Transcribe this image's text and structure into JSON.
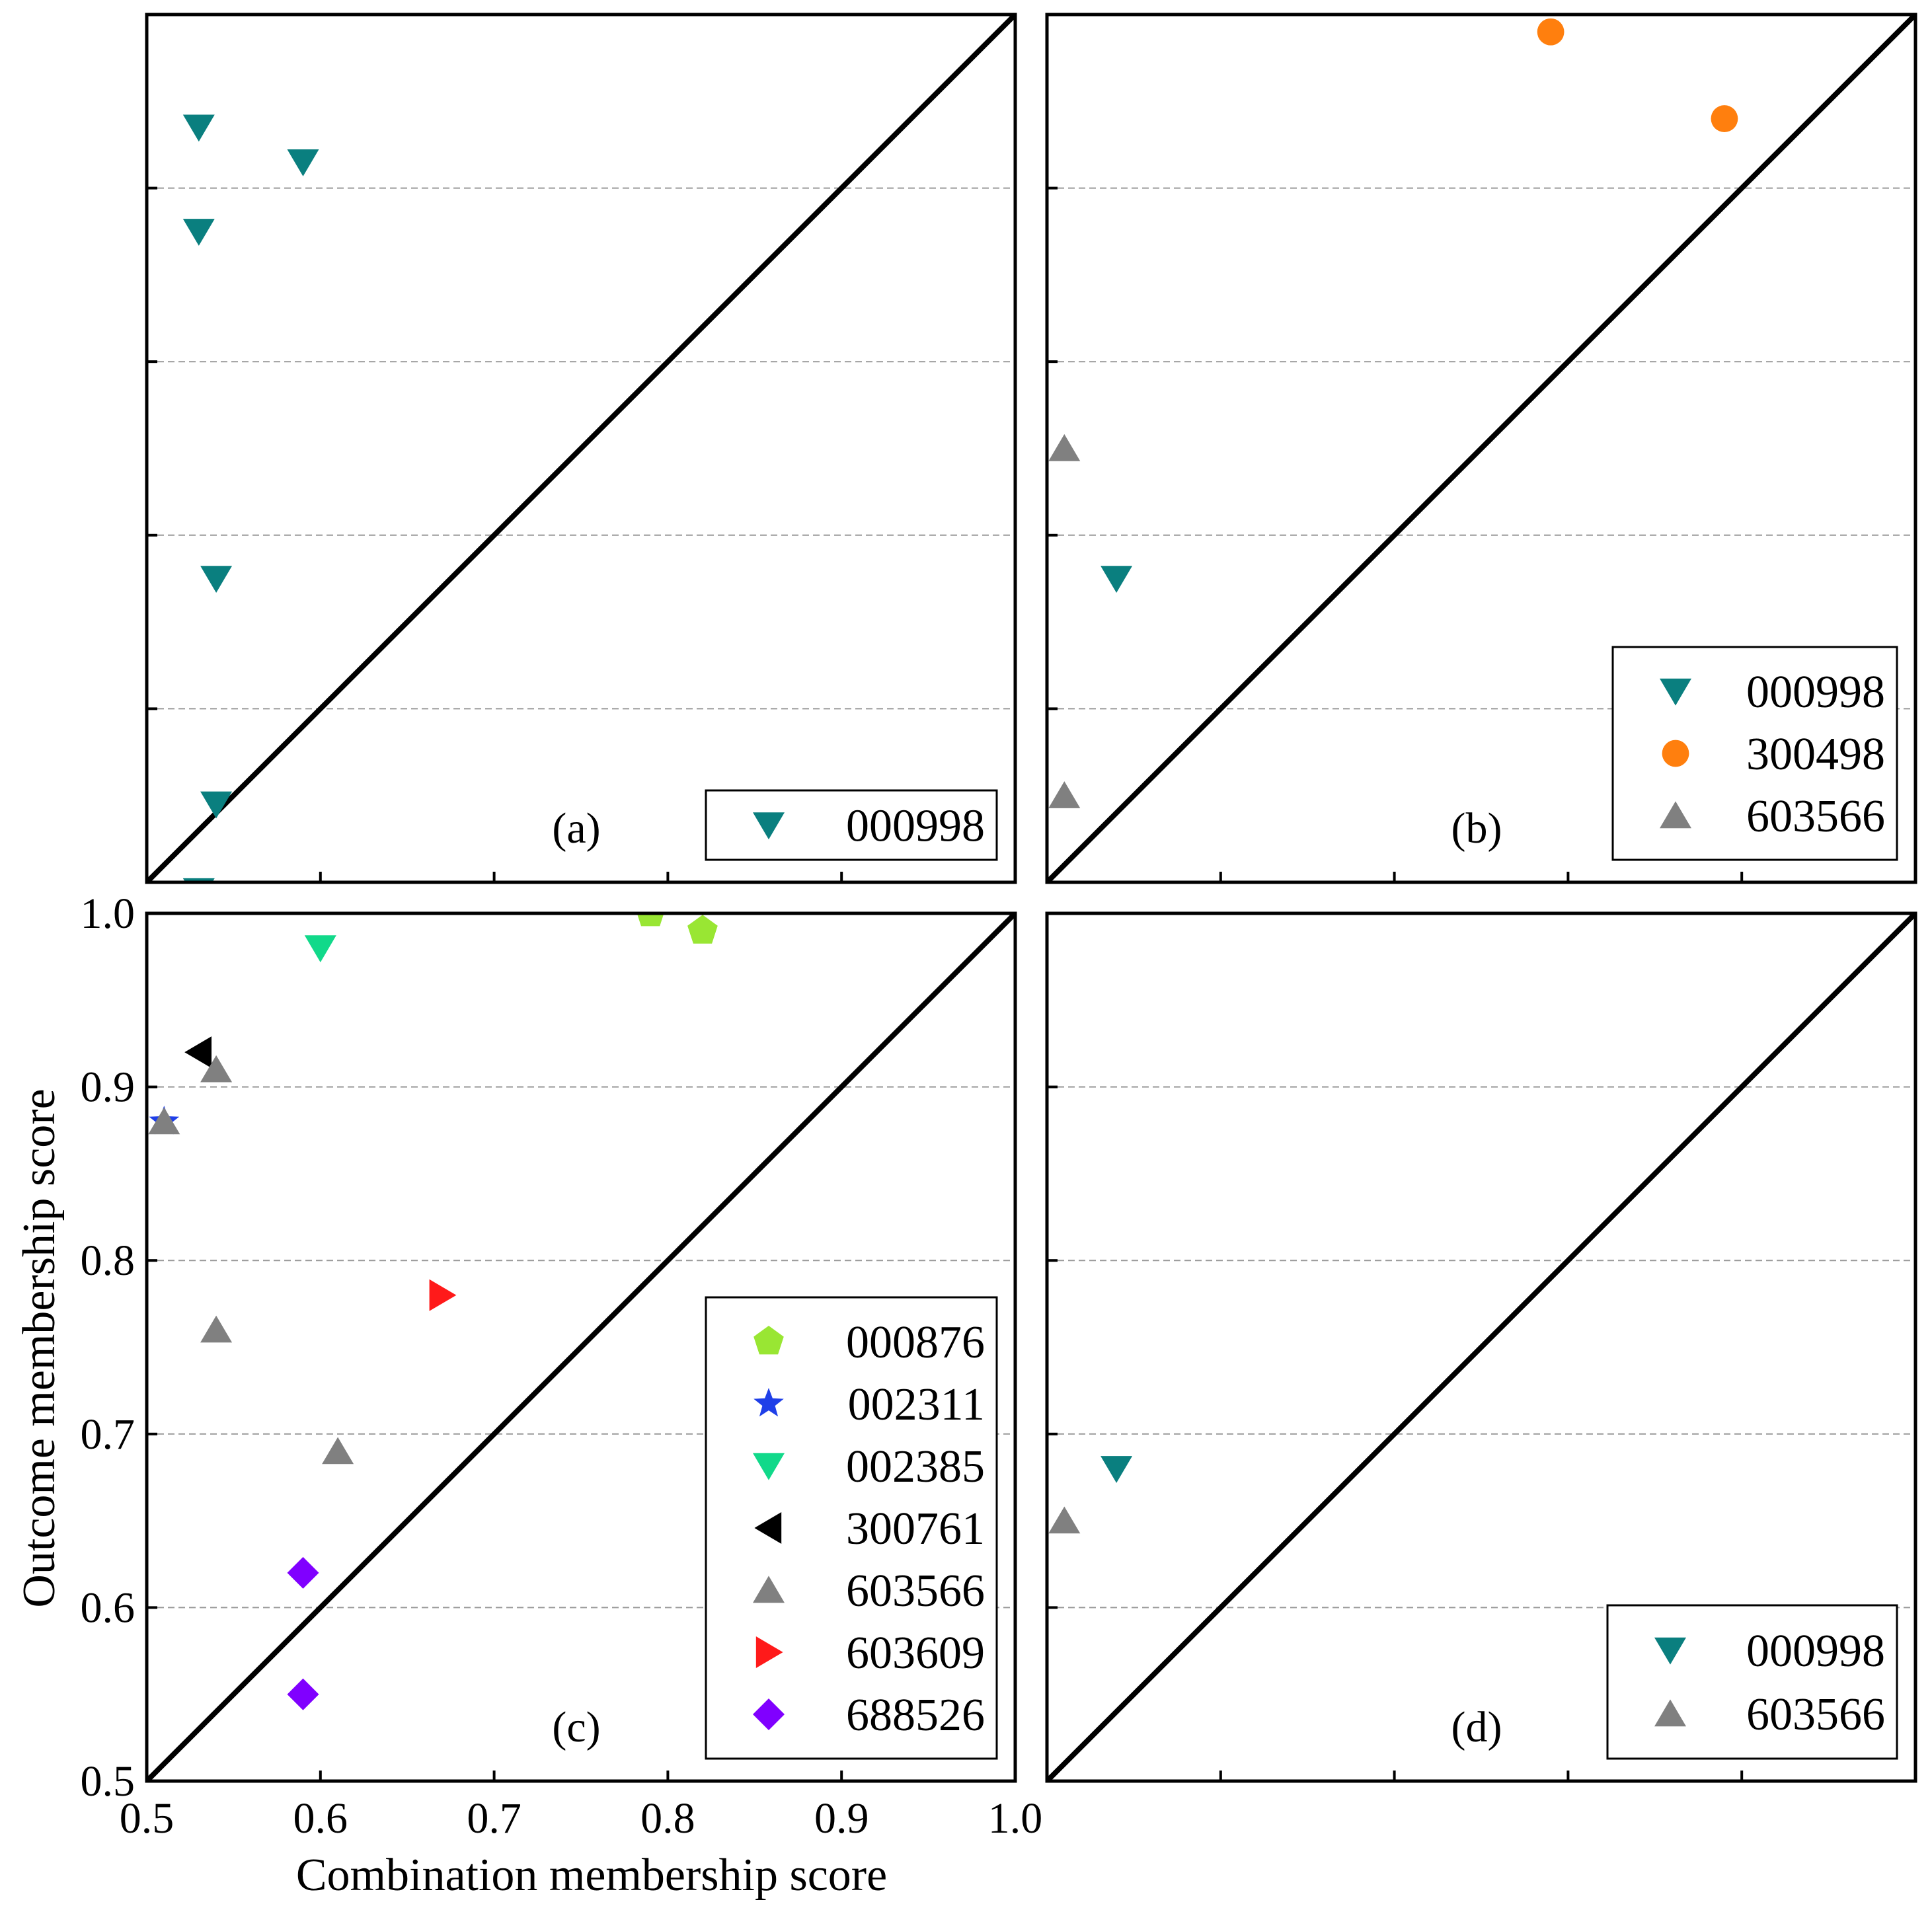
{
  "chart_data": [
    {
      "type": "scatter",
      "panel_label": "(a)",
      "xlim": [
        0.5,
        1.0
      ],
      "ylim": [
        0.5,
        1.0
      ],
      "grid": true,
      "diagonal": true,
      "legend_position": "bottom-right",
      "series": [
        {
          "name": "000998",
          "marker": "triangle-down",
          "color": "#0a7f7f",
          "points": [
            [
              0.53,
              0.935
            ],
            [
              0.59,
              0.915
            ],
            [
              0.53,
              0.875
            ],
            [
              0.54,
              0.675
            ],
            [
              0.54,
              0.545
            ],
            [
              0.53,
              0.495
            ]
          ]
        }
      ]
    },
    {
      "type": "scatter",
      "panel_label": "(b)",
      "xlim": [
        0.5,
        1.0
      ],
      "ylim": [
        0.5,
        1.0
      ],
      "grid": true,
      "diagonal": true,
      "legend_position": "bottom-right",
      "series": [
        {
          "name": "000998",
          "marker": "triangle-down",
          "color": "#0a7f7f",
          "points": [
            [
              0.54,
              0.675
            ]
          ]
        },
        {
          "name": "300498",
          "marker": "circle",
          "color": "#ff7f0e",
          "points": [
            [
              0.79,
              0.99
            ],
            [
              0.89,
              0.94
            ]
          ]
        },
        {
          "name": "603566",
          "marker": "triangle-up",
          "color": "#808080",
          "points": [
            [
              0.51,
              0.75
            ],
            [
              0.51,
              0.55
            ]
          ]
        }
      ]
    },
    {
      "type": "scatter",
      "panel_label": "(c)",
      "xlabel": "Combination membership score",
      "ylabel": "Outcome membership score",
      "xlim": [
        0.5,
        1.0
      ],
      "ylim": [
        0.5,
        1.0
      ],
      "xticks": [
        "0.5",
        "0.6",
        "0.7",
        "0.8",
        "0.9",
        "1.0"
      ],
      "yticks": [
        "0.5",
        "0.6",
        "0.7",
        "0.8",
        "0.9",
        "1.0"
      ],
      "grid": true,
      "diagonal": true,
      "legend_position": "bottom-right",
      "series": [
        {
          "name": "000876",
          "marker": "pentagon",
          "color": "#99e633",
          "points": [
            [
              0.79,
              1.0
            ],
            [
              0.82,
              0.99
            ]
          ]
        },
        {
          "name": "002311",
          "marker": "star",
          "color": "#1f3fe8",
          "points": [
            [
              0.51,
              0.88
            ]
          ]
        },
        {
          "name": "002385",
          "marker": "triangle-down",
          "color": "#11d98a",
          "points": [
            [
              0.6,
              0.98
            ]
          ]
        },
        {
          "name": "300761",
          "marker": "triangle-left",
          "color": "#000000",
          "points": [
            [
              0.53,
              0.92
            ]
          ]
        },
        {
          "name": "603566",
          "marker": "triangle-up",
          "color": "#808080",
          "points": [
            [
              0.54,
              0.91
            ],
            [
              0.51,
              0.88
            ],
            [
              0.54,
              0.76
            ],
            [
              0.61,
              0.69
            ]
          ]
        },
        {
          "name": "603609",
          "marker": "triangle-right",
          "color": "#ff1a1a",
          "points": [
            [
              0.67,
              0.78
            ]
          ]
        },
        {
          "name": "688526",
          "marker": "diamond",
          "color": "#8000ff",
          "points": [
            [
              0.59,
              0.62
            ],
            [
              0.59,
              0.55
            ]
          ]
        }
      ]
    },
    {
      "type": "scatter",
      "panel_label": "(d)",
      "xlim": [
        0.5,
        1.0
      ],
      "ylim": [
        0.5,
        1.0
      ],
      "grid": true,
      "diagonal": true,
      "legend_position": "bottom-right",
      "series": [
        {
          "name": "000998",
          "marker": "triangle-down",
          "color": "#0a7f7f",
          "points": [
            [
              0.54,
              0.68
            ]
          ]
        },
        {
          "name": "603566",
          "marker": "triangle-up",
          "color": "#808080",
          "points": [
            [
              0.51,
              0.65
            ]
          ]
        }
      ]
    }
  ]
}
